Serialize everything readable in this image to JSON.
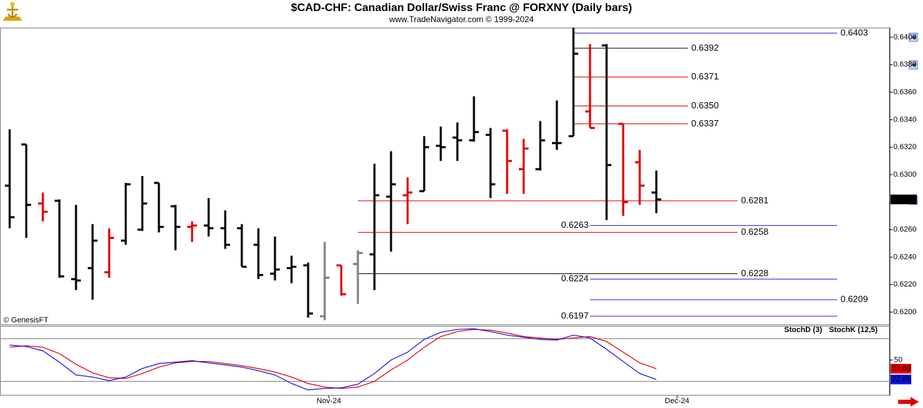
{
  "header": {
    "title": "$CAD-CHF:  Canadian Dollar/Swiss Franc @ FORXNY  (Daily bars)",
    "subtitle": "www.TradeNavigator.com © 1999-2024"
  },
  "watermark": "© GenesisFT",
  "chart_data": [
    {
      "type": "ohlc",
      "ylim": [
        0.6191,
        0.6407
      ],
      "yticks": [
        {
          "value": 0.62,
          "label": "0.6200"
        },
        {
          "value": 0.622,
          "label": "0.6220"
        },
        {
          "value": 0.624,
          "label": "0.6240"
        },
        {
          "value": 0.626,
          "label": "0.6260"
        },
        {
          "value": 0.628,
          "label": "0.6280"
        },
        {
          "value": 0.63,
          "label": "0.6300"
        },
        {
          "value": 0.632,
          "label": "0.6320"
        },
        {
          "value": 0.634,
          "label": "0.6340"
        },
        {
          "value": 0.636,
          "label": "0.6360"
        },
        {
          "value": 0.638,
          "label": "0.6380"
        },
        {
          "value": 0.64,
          "label": "0.6400"
        }
      ],
      "last_price": 0.6282,
      "open": [
        0.6292,
        0.6322,
        0.6279,
        0.6281,
        0.6224,
        0.6232,
        0.6229,
        0.6252,
        0.626,
        0.6294,
        0.6277,
        0.6262,
        0.6263,
        0.6261,
        0.6261,
        0.6249,
        0.6228,
        0.6232,
        0.6234,
        0.6197,
        0.6234,
        0.6235,
        0.6242,
        0.6284,
        0.6285,
        0.6288,
        0.6321,
        0.6327,
        0.6325,
        0.6329,
        0.6332,
        0.6304,
        0.6304,
        0.6323,
        0.6328,
        0.6346,
        0.6394,
        0.6337,
        0.6309,
        0.6287
      ],
      "high": [
        0.6333,
        0.6322,
        0.6287,
        0.6282,
        0.6278,
        0.6264,
        0.6261,
        0.6294,
        0.6299,
        0.6294,
        0.6278,
        0.6266,
        0.6283,
        0.6274,
        0.6264,
        0.6261,
        0.6255,
        0.6241,
        0.6236,
        0.6251,
        0.6234,
        0.6245,
        0.6308,
        0.6317,
        0.6298,
        0.6328,
        0.6335,
        0.6338,
        0.6357,
        0.6334,
        0.6333,
        0.6326,
        0.6339,
        0.6354,
        0.6407,
        0.6395,
        0.6395,
        0.6337,
        0.6318,
        0.6303
      ],
      "low": [
        0.6261,
        0.6254,
        0.6266,
        0.6225,
        0.6216,
        0.6209,
        0.6225,
        0.6249,
        0.6259,
        0.6258,
        0.6245,
        0.6251,
        0.6255,
        0.6246,
        0.6233,
        0.6224,
        0.6223,
        0.6221,
        0.6196,
        0.6194,
        0.6212,
        0.6206,
        0.6216,
        0.6244,
        0.6264,
        0.6288,
        0.631,
        0.631,
        0.6324,
        0.6283,
        0.6286,
        0.6286,
        0.6303,
        0.6318,
        0.6328,
        0.6334,
        0.6267,
        0.627,
        0.6278,
        0.6272
      ],
      "close": [
        0.6269,
        0.6278,
        0.6273,
        0.6226,
        0.6223,
        0.6252,
        0.6254,
        0.6293,
        0.6279,
        0.6262,
        0.6262,
        0.6263,
        0.6261,
        0.6249,
        0.6233,
        0.6227,
        0.6231,
        0.6233,
        0.6199,
        0.6225,
        0.6213,
        0.6243,
        0.6285,
        0.6293,
        0.6287,
        0.632,
        0.632,
        0.6325,
        0.6331,
        0.6293,
        0.631,
        0.6319,
        0.6325,
        0.6323,
        0.6388,
        0.6334,
        0.6307,
        0.628,
        0.6292,
        0.6282
      ],
      "colors": [
        "#000000",
        "#000000",
        "#e00000",
        "#000000",
        "#000000",
        "#000000",
        "#e00000",
        "#000000",
        "#000000",
        "#000000",
        "#000000",
        "#e00000",
        "#000000",
        "#000000",
        "#000000",
        "#000000",
        "#000000",
        "#000000",
        "#000000",
        "#808080",
        "#e00000",
        "#808080",
        "#000000",
        "#000000",
        "#e00000",
        "#000000",
        "#000000",
        "#000000",
        "#000000",
        "#000000",
        "#e00000",
        "#e00000",
        "#000000",
        "#000000",
        "#000000",
        "#e00000",
        "#000000",
        "#e00000",
        "#e00000",
        "#000000"
      ],
      "levels": [
        {
          "value": 0.6403,
          "label": "0.6403",
          "color": "#2020e0",
          "start": 34,
          "end": 49.9,
          "label_side": "right"
        },
        {
          "value": 0.6392,
          "label": "0.6392",
          "color": "#000000",
          "start": 34,
          "end": 40.9,
          "label_side": "right"
        },
        {
          "value": 0.6371,
          "label": "0.6371",
          "color": "#e00000",
          "start": 34,
          "end": 40.9,
          "label_side": "right"
        },
        {
          "value": 0.635,
          "label": "0.6350",
          "color": "#e00000",
          "start": 34,
          "end": 40.9,
          "label_side": "right"
        },
        {
          "value": 0.6337,
          "label": "0.6337",
          "color": "#e00000",
          "start": 34,
          "end": 40.9,
          "label_side": "right"
        },
        {
          "value": 0.6281,
          "label": "0.6281",
          "color": "#e00000",
          "start": 21,
          "end": 43.9,
          "label_side": "right"
        },
        {
          "value": 0.6263,
          "label": "0.6263",
          "color": "#2020e0",
          "start": 35,
          "end": 49.9,
          "label_side": "left"
        },
        {
          "value": 0.6258,
          "label": "0.6258",
          "color": "#e00000",
          "start": 21,
          "end": 43.9,
          "label_side": "right"
        },
        {
          "value": 0.6228,
          "label": "0.6228",
          "color": "#000000",
          "start": 21,
          "end": 43.9,
          "label_side": "right"
        },
        {
          "value": 0.6224,
          "label": "0.6224",
          "color": "#2020e0",
          "start": 35,
          "end": 49.9,
          "label_side": "left"
        },
        {
          "value": 0.6209,
          "label": "0.6209",
          "color": "#2020e0",
          "start": 35,
          "end": 49.9,
          "label_side": "right"
        },
        {
          "value": 0.6197,
          "label": "0.6197",
          "color": "#2020e0",
          "start": 35,
          "end": 49.9,
          "label_side": "left"
        }
      ]
    },
    {
      "type": "line",
      "ylim": [
        0,
        100
      ],
      "yticks": [
        50
      ],
      "levels": [
        20,
        80
      ],
      "xticks": [
        {
          "value": 19.25,
          "label": "Nov-24"
        },
        {
          "value": 40.25,
          "label": "Dec-24"
        }
      ],
      "series": [
        {
          "name": "StochD (3)",
          "color": "#e00000",
          "values": [
            68,
            70,
            68,
            59,
            44,
            32,
            25,
            24,
            31,
            40,
            46,
            48,
            48,
            45,
            42,
            38,
            33,
            26,
            17,
            12,
            10,
            12,
            20,
            36,
            50,
            68,
            83,
            90,
            93,
            92,
            88,
            83,
            81,
            79,
            81,
            83,
            76,
            61,
            46,
            37.83
          ]
        },
        {
          "name": "StochK (12,5)",
          "color": "#1010e0",
          "values": [
            71,
            69,
            63,
            47,
            29,
            26,
            21,
            26,
            38,
            45,
            47,
            49,
            46,
            43,
            40,
            35,
            29,
            17,
            8,
            10,
            11,
            16,
            31,
            50,
            61,
            79,
            89,
            93,
            94,
            90,
            85,
            82,
            79,
            78,
            85,
            81,
            65,
            48,
            31,
            22.65
          ]
        }
      ]
    }
  ]
}
